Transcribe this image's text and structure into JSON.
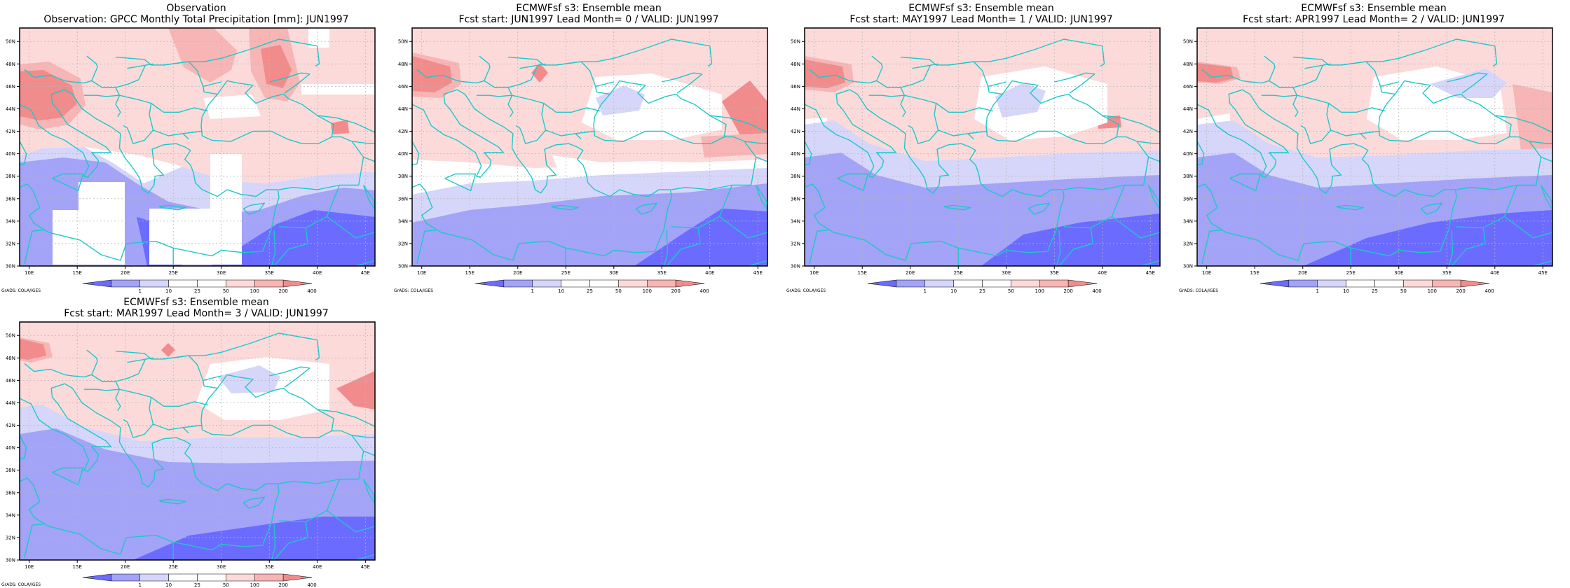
{
  "colors": {
    "neg_strong": "#6b6bff",
    "neg_mid": "#a3a3f7",
    "neg_light": "#d6d6fa",
    "pos_light": "#fcdada",
    "pos_mid": "#f7b5b5",
    "pos_strong": "#f28b8b",
    "coast": "#1fc8c8",
    "grid": "#b7b7b7"
  },
  "panels": [
    {
      "title": "Observation",
      "subtitle": "Observation: GPCC Monthly Total Precipitation [mm]: JUN1997",
      "variant": "obs"
    },
    {
      "title": "ECMWFsf s3: Ensemble mean",
      "subtitle": "Fcst start: JUN1997  Lead Month= 0 / VALID: JUN1997",
      "variant": "l0"
    },
    {
      "title": "ECMWFsf s3: Ensemble mean",
      "subtitle": "Fcst start: MAY1997  Lead Month= 1 / VALID: JUN1997",
      "variant": "l1"
    },
    {
      "title": "ECMWFsf s3: Ensemble mean",
      "subtitle": "Fcst start: APR1997  Lead Month= 2 / VALID: JUN1997",
      "variant": "l2"
    },
    {
      "title": "ECMWFsf s3: Ensemble mean",
      "subtitle": "Fcst start: MAR1997  Lead Month= 3 / VALID: JUN1997",
      "variant": "l3"
    }
  ],
  "axes": {
    "lon_labels": [
      "10E",
      "15E",
      "20E",
      "25E",
      "30E",
      "35E",
      "40E",
      "45E"
    ],
    "lat_labels": [
      "30N",
      "32N",
      "34N",
      "36N",
      "38N",
      "40N",
      "42N",
      "44N",
      "46N",
      "48N",
      "50N"
    ]
  },
  "colorbar": {
    "labels": [
      "1",
      "10",
      "25",
      "50",
      "100",
      "200",
      "400"
    ]
  },
  "credit": "GrADS: COLA/IGES"
}
